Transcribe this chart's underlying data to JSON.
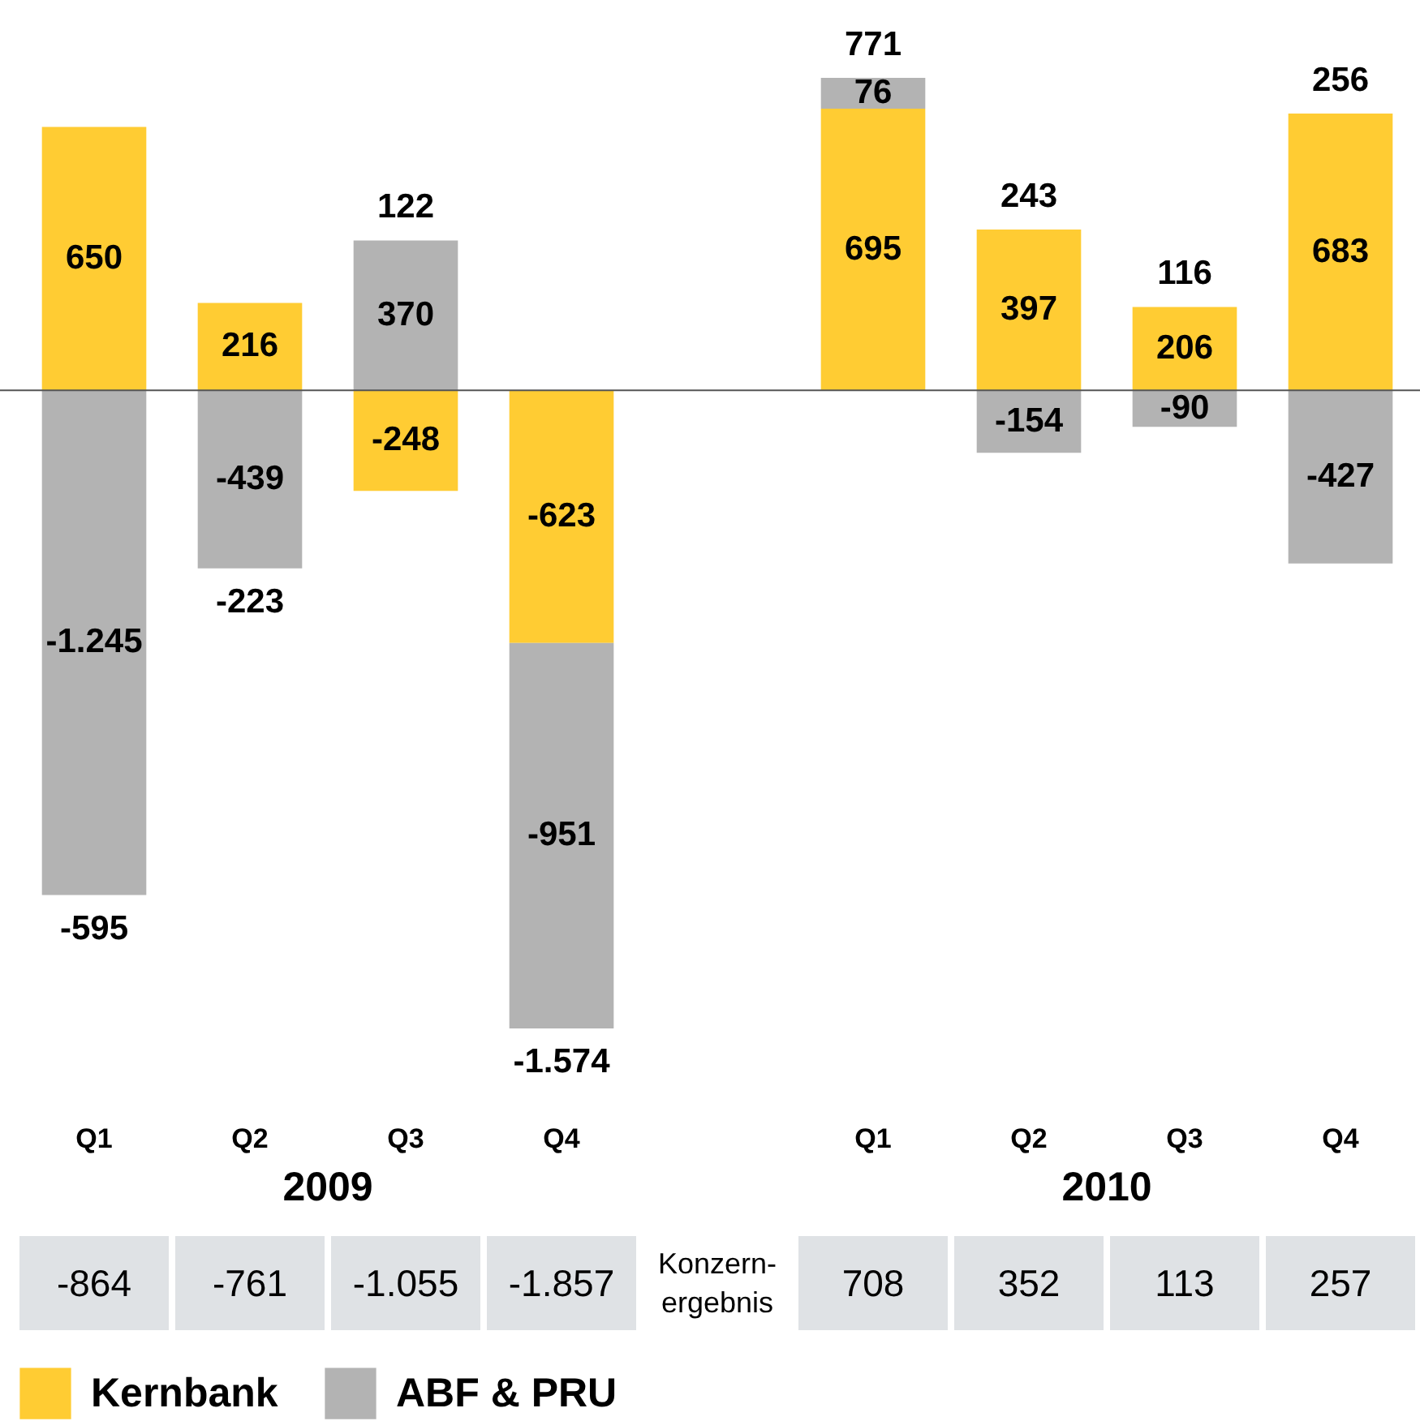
{
  "chart_data": {
    "type": "bar",
    "stacked": true,
    "categories": [
      "Q1",
      "Q2",
      "Q3",
      "Q4",
      null,
      "Q1",
      "Q2",
      "Q3",
      "Q4"
    ],
    "series": [
      {
        "name": "Kernbank",
        "color": "#ffcc33",
        "values": [
          650,
          216,
          -248,
          -623,
          null,
          695,
          397,
          206,
          683
        ],
        "value_labels": [
          "650",
          "216",
          "-248",
          "-623",
          null,
          "695",
          "397",
          "206",
          "683"
        ]
      },
      {
        "name": "ABF & PRU",
        "color": "#b3b3b3",
        "values": [
          -1245,
          -439,
          370,
          -951,
          null,
          76,
          -154,
          -90,
          -427
        ],
        "value_labels": [
          "-1.245",
          "-439",
          "370",
          "-951",
          null,
          "76",
          "-154",
          "-90",
          "-427"
        ]
      }
    ],
    "totals": [
      "-595",
      "-223",
      "122",
      "-1.574",
      null,
      "771",
      "243",
      "116",
      "256"
    ],
    "legend": "bottom left",
    "grid": false,
    "annotations": [
      "2009",
      "2010",
      "Konzern-ergebnis",
      "-864",
      "-761",
      "-1.055",
      "-1.857",
      "708",
      "352",
      "113",
      "257"
    ]
  }
}
